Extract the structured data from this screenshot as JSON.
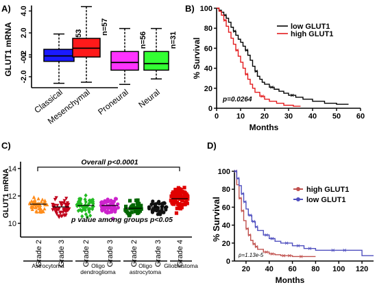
{
  "panels": [
    {
      "letter": "A)",
      "label_size": 13
    },
    {
      "letter": "B)",
      "label_size": 13
    },
    {
      "letter": "C)",
      "label_size": 13
    },
    {
      "letter": "D)",
      "label_size": 13
    }
  ],
  "chart_data": [
    {
      "type": "box",
      "ylabel": "GLUT1 mRNA",
      "ylim": [
        -3.0,
        4.5
      ],
      "yticks": [
        -2.0,
        -0.2,
        0,
        2.0,
        4.0
      ],
      "ytick_labels": [
        "-2.0",
        "-0.2",
        "0",
        "2.0",
        "4.0"
      ],
      "categories": [
        "Classical",
        "Mesenchymal",
        "Proneural",
        "Neural"
      ],
      "colors": [
        "#1a1aff",
        "#ff1a1a",
        "#ff33ff",
        "#33ff33"
      ],
      "boxes": [
        {
          "n_label": "n=53",
          "whisker_low": -2.6,
          "q1": -0.6,
          "median": -0.1,
          "q3": 0.5,
          "whisker_high": 1.9
        },
        {
          "n_label": "n=57",
          "whisker_low": -2.5,
          "q1": -0.2,
          "median": 0.6,
          "q3": 1.5,
          "whisker_high": 4.4
        },
        {
          "n_label": "n=56",
          "whisker_low": -2.7,
          "q1": -1.4,
          "median": -0.7,
          "q3": 0.3,
          "whisker_high": 2.4
        },
        {
          "n_label": "n=31",
          "whisker_low": -2.2,
          "q1": -1.4,
          "median": -0.8,
          "q3": 0.3,
          "whisker_high": 2.4
        }
      ]
    },
    {
      "type": "line",
      "subtype": "kaplan-meier",
      "xlabel": "Months",
      "ylabel": "% Survival",
      "xlim": [
        0,
        60
      ],
      "ylim": [
        0,
        100
      ],
      "xticks": [
        0,
        10,
        20,
        30,
        40,
        50,
        60
      ],
      "yticks": [
        0,
        20,
        40,
        60,
        80,
        100
      ],
      "annotation": "p=0.0264",
      "legend_position": "top-right",
      "series": [
        {
          "name": "low GLUT1",
          "color": "#000000",
          "x": [
            0,
            1,
            2,
            3,
            4,
            5,
            6,
            7,
            8,
            9,
            10,
            11,
            12,
            13,
            14,
            15,
            16,
            17,
            18,
            19,
            20,
            22,
            24,
            26,
            28,
            30,
            33,
            36,
            40,
            45,
            50,
            55
          ],
          "y": [
            100,
            98,
            96,
            93,
            90,
            86,
            81,
            77,
            73,
            69,
            66,
            62,
            58,
            53,
            48,
            42,
            37,
            32,
            29,
            26,
            24,
            21,
            19,
            17,
            15,
            13,
            11,
            9,
            7,
            5,
            4,
            4
          ]
        },
        {
          "name": "high GLUT1",
          "color": "#e31a1c",
          "x": [
            0,
            1,
            2,
            3,
            4,
            5,
            6,
            7,
            8,
            9,
            10,
            11,
            12,
            13,
            14,
            15,
            16,
            18,
            20,
            22,
            25,
            28,
            32,
            35
          ],
          "y": [
            100,
            97,
            93,
            88,
            82,
            76,
            70,
            64,
            58,
            52,
            46,
            40,
            34,
            29,
            24,
            20,
            16,
            12,
            9,
            7,
            5,
            3,
            2,
            2
          ]
        }
      ]
    },
    {
      "type": "scatter",
      "ylabel": "GLUT1 mRNA",
      "ylim": [
        9,
        14.5
      ],
      "yticks": [
        10,
        12,
        14
      ],
      "ytick_labels": [
        "10",
        "12",
        "14"
      ],
      "annotation_top": "Overall p<0.0001",
      "annotation_mid": "p value among groups p<0.05",
      "groups": [
        {
          "grade": "Grade 2",
          "color": "#ff8c1a",
          "mean": 11.4,
          "sd": 0.45,
          "n": 45
        },
        {
          "grade": "Grade 3",
          "color": "#c0001a",
          "mean": 11.2,
          "sd": 0.55,
          "n": 50
        },
        {
          "grade": "Grade 2",
          "color": "#22bb22",
          "mean": 11.3,
          "sd": 0.6,
          "n": 50
        },
        {
          "grade": "Grade 3",
          "color": "#cc22cc",
          "mean": 11.3,
          "sd": 0.6,
          "n": 55
        },
        {
          "grade": "Grade 2",
          "color": "#006600",
          "mean": 11.1,
          "sd": 0.45,
          "n": 45
        },
        {
          "grade": "Grade 3",
          "color": "#111111",
          "mean": 11.2,
          "sd": 0.45,
          "n": 40
        },
        {
          "grade": "Grade 4",
          "color": "#e00000",
          "mean": 11.8,
          "sd": 0.75,
          "n": 90
        }
      ],
      "histology_labels": [
        "Astrocytoma",
        "Oligo\ndendroglioma",
        "Oligo\nastrocytoma",
        "Glioblastoma"
      ]
    },
    {
      "type": "line",
      "subtype": "kaplan-meier",
      "xlabel": "Months",
      "ylabel": "% Survival",
      "xlim": [
        10,
        130
      ],
      "ylim": [
        0,
        100
      ],
      "xticks": [
        20,
        40,
        60,
        80,
        100,
        120
      ],
      "yticks": [
        0,
        20,
        40,
        60,
        80,
        100
      ],
      "annotation": "p=1.13e-5",
      "legend_position": "top-right",
      "series": [
        {
          "name": "high GLUT1",
          "color": "#c0504d",
          "x": [
            10,
            12,
            14,
            16,
            18,
            20,
            22,
            24,
            26,
            28,
            30,
            35,
            40,
            45,
            50,
            55,
            60,
            65,
            70,
            75,
            80
          ],
          "y": [
            100,
            85,
            70,
            56,
            45,
            36,
            29,
            23,
            19,
            16,
            13,
            10,
            8,
            7,
            6,
            6,
            5,
            5,
            5,
            5,
            5
          ]
        },
        {
          "name": "low GLUT1",
          "color": "#4f4fbf",
          "x": [
            10,
            12,
            14,
            16,
            18,
            20,
            22,
            25,
            28,
            30,
            35,
            40,
            45,
            50,
            60,
            70,
            80,
            90,
            100,
            110,
            120,
            130
          ],
          "y": [
            100,
            92,
            84,
            75,
            66,
            58,
            51,
            44,
            38,
            34,
            29,
            25,
            22,
            20,
            17,
            14,
            12,
            12,
            12,
            12,
            6,
            6
          ]
        }
      ]
    }
  ]
}
